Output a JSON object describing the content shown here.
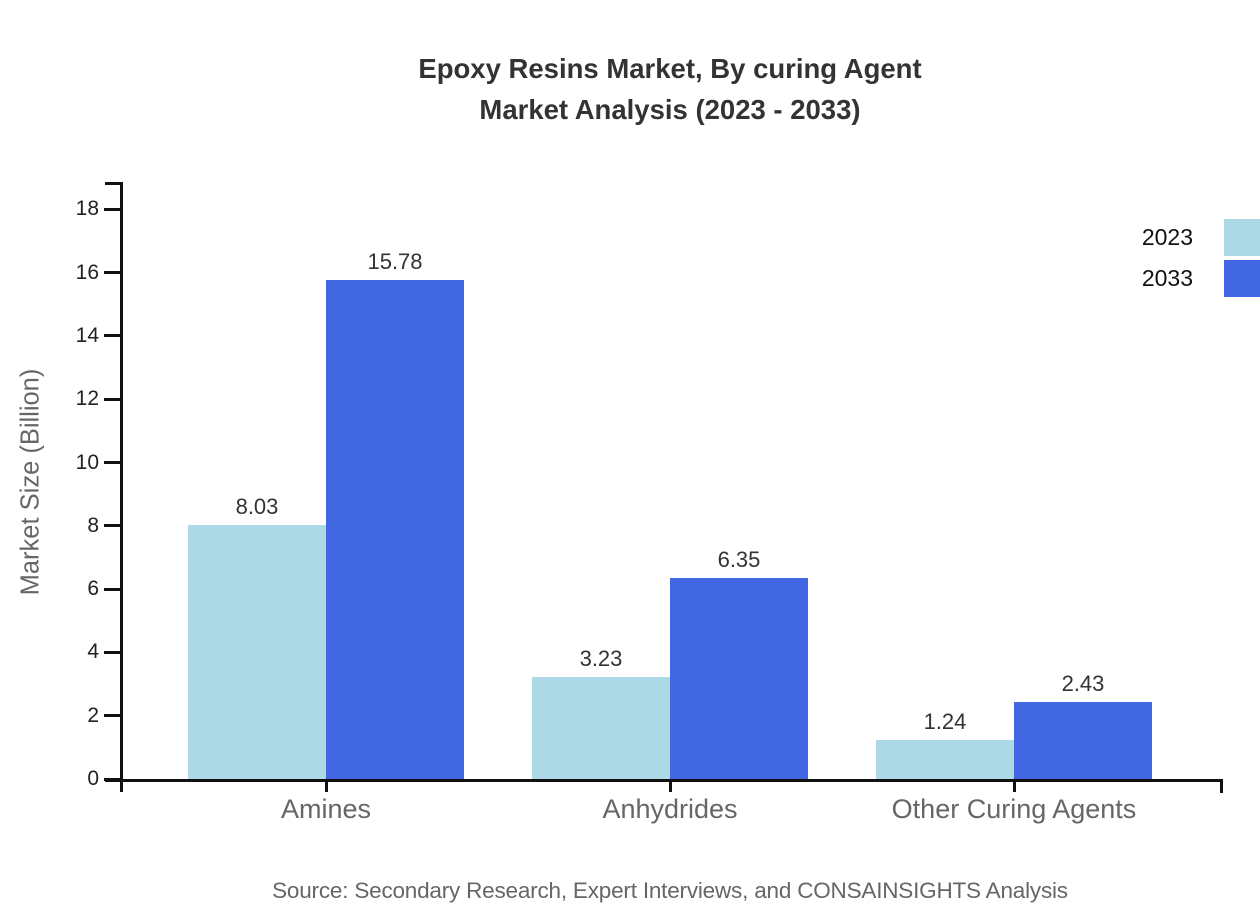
{
  "title": {
    "line1": "Epoxy Resins Market, By curing Agent",
    "line2": "Market Analysis (2023 - 2033)"
  },
  "source": "Source: Secondary Research, Expert Interviews, and CONSAINSIGHTS Analysis",
  "legend": {
    "items": [
      {
        "label": "2023",
        "color": "#ADD8E6"
      },
      {
        "label": "2033",
        "color": "#4267E2"
      }
    ]
  },
  "chart_data": {
    "type": "bar",
    "title": "Epoxy Resins Market, By curing Agent Market Analysis (2023 - 2033)",
    "categories": [
      "Amines",
      "Anhydrides",
      "Other Curing Agents"
    ],
    "series": [
      {
        "name": "2023",
        "color": "#ADD8E6",
        "values": [
          8.03,
          3.23,
          1.24
        ]
      },
      {
        "name": "2033",
        "color": "#4267E2",
        "values": [
          15.78,
          6.35,
          2.43
        ]
      }
    ],
    "xlabel": "",
    "ylabel": "Market Size (Billion)",
    "ylim": [
      0,
      18
    ],
    "yticks": [
      0,
      2,
      4,
      6,
      8,
      10,
      12,
      14,
      16,
      18
    ],
    "grid": false,
    "legend_position": "top-right",
    "value_labels": true,
    "axis_color": "#111111"
  }
}
